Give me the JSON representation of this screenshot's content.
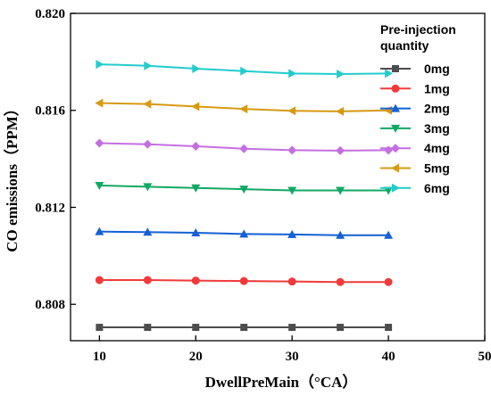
{
  "chart_data": {
    "type": "line",
    "title": "",
    "xlabel": "DwellPreMain（°CA）",
    "ylabel": "CO emissions（PPM）",
    "xlim": [
      7,
      50
    ],
    "ylim": [
      0.8065,
      0.82
    ],
    "xticks": [
      10,
      20,
      30,
      40,
      50
    ],
    "yticks": [
      0.808,
      0.812,
      0.816,
      0.82
    ],
    "ytick_labels": [
      "0.808",
      "0.812",
      "0.816",
      "0.820"
    ],
    "grid": false,
    "legend_title": [
      "Pre-injection",
      "quantity"
    ],
    "legend_position": "top-right",
    "x": [
      10,
      15,
      20,
      25,
      30,
      35,
      40
    ],
    "series": [
      {
        "name": "0mg",
        "color": "#4d4d4d",
        "marker": "square",
        "values": [
          0.80705,
          0.80705,
          0.80705,
          0.80705,
          0.80705,
          0.80705,
          0.80705
        ]
      },
      {
        "name": "1mg",
        "color": "#f03a3a",
        "marker": "circle",
        "values": [
          0.809,
          0.809,
          0.80898,
          0.80896,
          0.80894,
          0.80892,
          0.80892
        ]
      },
      {
        "name": "2mg",
        "color": "#1560d4",
        "marker": "triangle-up",
        "values": [
          0.811,
          0.81098,
          0.81095,
          0.8109,
          0.81088,
          0.81085,
          0.81085
        ]
      },
      {
        "name": "3mg",
        "color": "#12a864",
        "marker": "triangle-down",
        "values": [
          0.8129,
          0.81285,
          0.8128,
          0.81275,
          0.8127,
          0.8127,
          0.8127
        ]
      },
      {
        "name": "4mg",
        "color": "#c36fe0",
        "marker": "diamond",
        "values": [
          0.81465,
          0.8146,
          0.81452,
          0.81442,
          0.81436,
          0.81434,
          0.81436
        ]
      },
      {
        "name": "5mg",
        "color": "#d69a12",
        "marker": "triangle-left",
        "values": [
          0.8163,
          0.81626,
          0.81616,
          0.81606,
          0.81598,
          0.81596,
          0.816
        ]
      },
      {
        "name": "6mg",
        "color": "#22cccc",
        "marker": "triangle-right",
        "values": [
          0.8179,
          0.81784,
          0.81772,
          0.81762,
          0.81752,
          0.8175,
          0.81752
        ]
      }
    ]
  }
}
